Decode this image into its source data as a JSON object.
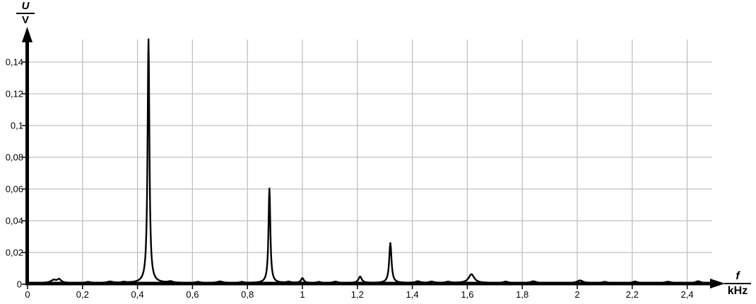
{
  "chart_data": {
    "type": "line",
    "title": "",
    "description": "Frequency spectrum (FFT) of a signal: voltage amplitude U in volts versus frequency f in kHz",
    "ylabel": {
      "numerator": "U",
      "denominator": "V"
    },
    "xlabel": {
      "numerator": "f",
      "denominator": "kHz"
    },
    "xlim": [
      0,
      2.55
    ],
    "ylim": [
      0,
      0.156
    ],
    "grid": true,
    "legend": "none",
    "decimal_separator": ",",
    "colors": {
      "background": "#ffffff",
      "grid": "#c0c0c0",
      "axis": "#000000",
      "curve": "#000000",
      "text": "#000000"
    },
    "x_ticks": [
      {
        "value": 0.0,
        "label": "0"
      },
      {
        "value": 0.2,
        "label": "0,2"
      },
      {
        "value": 0.4,
        "label": "0,4"
      },
      {
        "value": 0.6,
        "label": "0,6"
      },
      {
        "value": 0.8,
        "label": "0,8"
      },
      {
        "value": 1.0,
        "label": "1"
      },
      {
        "value": 1.2,
        "label": "1,2"
      },
      {
        "value": 1.4,
        "label": "1,4"
      },
      {
        "value": 1.6,
        "label": "1,6"
      },
      {
        "value": 1.8,
        "label": "1,8"
      },
      {
        "value": 2.0,
        "label": "2"
      },
      {
        "value": 2.2,
        "label": "2,2"
      },
      {
        "value": 2.4,
        "label": "2,4"
      }
    ],
    "y_ticks": [
      {
        "value": 0.02,
        "label": "0,02"
      },
      {
        "value": 0.04,
        "label": "0,04"
      },
      {
        "value": 0.06,
        "label": "0,06"
      },
      {
        "value": 0.08,
        "label": "0,08"
      },
      {
        "value": 0.1,
        "label": "0,1"
      },
      {
        "value": 0.12,
        "label": "0,12"
      },
      {
        "value": 0.14,
        "label": "0,14"
      }
    ],
    "y_zero_label": "0",
    "peaks": [
      {
        "f_kHz": 0.44,
        "amplitude_V": 0.1535,
        "halfwidth_kHz": 0.004
      },
      {
        "f_kHz": 0.88,
        "amplitude_V": 0.0595,
        "halfwidth_kHz": 0.004
      },
      {
        "f_kHz": 1.32,
        "amplitude_V": 0.0252,
        "halfwidth_kHz": 0.005
      },
      {
        "f_kHz": 1.0,
        "amplitude_V": 0.003,
        "halfwidth_kHz": 0.006
      },
      {
        "f_kHz": 1.21,
        "amplitude_V": 0.004,
        "halfwidth_kHz": 0.007
      },
      {
        "f_kHz": 1.615,
        "amplitude_V": 0.0055,
        "halfwidth_kHz": 0.012
      }
    ],
    "noise_bumps": [
      [
        0.095,
        0.0018,
        0.012
      ],
      [
        0.115,
        0.0022,
        0.008
      ],
      [
        0.22,
        0.0006,
        0.01
      ],
      [
        0.3,
        0.0008,
        0.012
      ],
      [
        0.35,
        0.0005,
        0.008
      ],
      [
        0.52,
        0.0008,
        0.01
      ],
      [
        0.62,
        0.0006,
        0.01
      ],
      [
        0.7,
        0.0009,
        0.012
      ],
      [
        0.78,
        0.0006,
        0.008
      ],
      [
        0.95,
        0.0007,
        0.008
      ],
      [
        1.06,
        0.0006,
        0.008
      ],
      [
        1.12,
        0.0008,
        0.01
      ],
      [
        1.42,
        0.001,
        0.01
      ],
      [
        1.47,
        0.0008,
        0.01
      ],
      [
        1.53,
        0.0007,
        0.01
      ],
      [
        1.74,
        0.0008,
        0.01
      ],
      [
        1.84,
        0.001,
        0.012
      ],
      [
        2.01,
        0.0016,
        0.012
      ],
      [
        2.1,
        0.0007,
        0.01
      ],
      [
        2.21,
        0.0009,
        0.01
      ],
      [
        2.33,
        0.0008,
        0.012
      ],
      [
        2.44,
        0.0011,
        0.01
      ]
    ],
    "baseline_V": 0.0008
  }
}
